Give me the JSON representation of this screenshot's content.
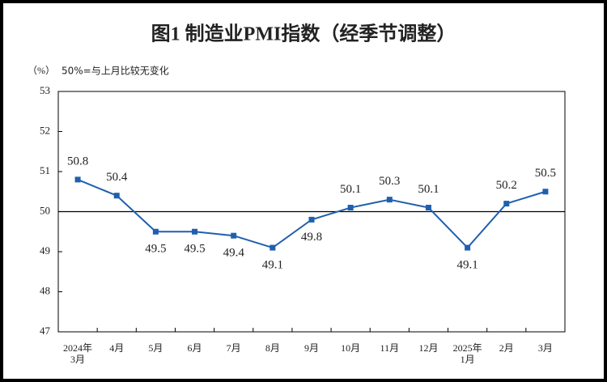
{
  "chart_data": {
    "type": "line",
    "title": "图1  制造业PMI指数（经季节调整）",
    "unit_label": "（%）",
    "note": "50%=与上月比较无变化",
    "categories": [
      "2024年\n3月",
      "4月",
      "5月",
      "6月",
      "7月",
      "8月",
      "9月",
      "10月",
      "11月",
      "12月",
      "2025年\n1月",
      "2月",
      "3月"
    ],
    "series": [
      {
        "name": "制造业PMI",
        "color": "#1f5fae",
        "values": [
          50.8,
          50.4,
          49.5,
          49.5,
          49.4,
          49.1,
          49.8,
          50.1,
          50.3,
          50.1,
          49.1,
          50.2,
          50.5
        ]
      }
    ],
    "ylim": [
      47,
      53
    ],
    "yticks": [
      47,
      48,
      49,
      50,
      51,
      52,
      53
    ],
    "reference_line": 50,
    "grid": false
  }
}
